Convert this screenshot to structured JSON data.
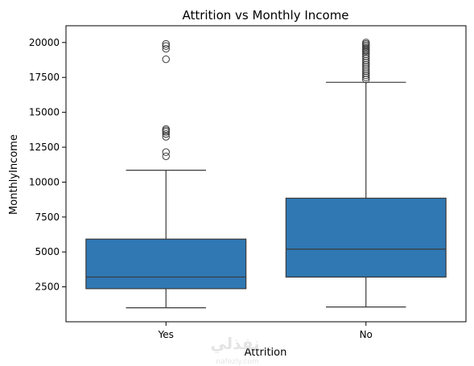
{
  "chart_data": {
    "type": "box",
    "title": "Attrition vs Monthly Income",
    "xlabel": "Attrition",
    "ylabel": "MonthlyIncome",
    "categories": [
      "Yes",
      "No"
    ],
    "ylim": [
      0,
      21200
    ],
    "yticks": [
      2500,
      5000,
      7500,
      10000,
      12500,
      15000,
      17500,
      20000
    ],
    "grid": false,
    "box_color": "#2f78b3",
    "line_color": "#3a3a3a",
    "boxes": [
      {
        "category": "Yes",
        "whisker_low": 1000,
        "q1": 2370,
        "median": 3200,
        "q3": 5920,
        "whisker_high": 10850,
        "outliers": [
          11850,
          12150,
          13250,
          13450,
          13600,
          13700,
          13800,
          18800,
          19550,
          19750,
          19900
        ]
      },
      {
        "category": "No",
        "whisker_low": 1060,
        "q1": 3200,
        "median": 5200,
        "q3": 8850,
        "whisker_high": 17150,
        "outliers": [
          17350,
          17500,
          17650,
          17800,
          17950,
          18100,
          18250,
          18400,
          18550,
          18700,
          18850,
          19000,
          19150,
          19300,
          19400,
          19500,
          19600,
          19700,
          19800,
          19900,
          20000
        ]
      }
    ]
  },
  "watermark": {
    "text": "نفذلي",
    "subtext": "nafezly.com"
  }
}
